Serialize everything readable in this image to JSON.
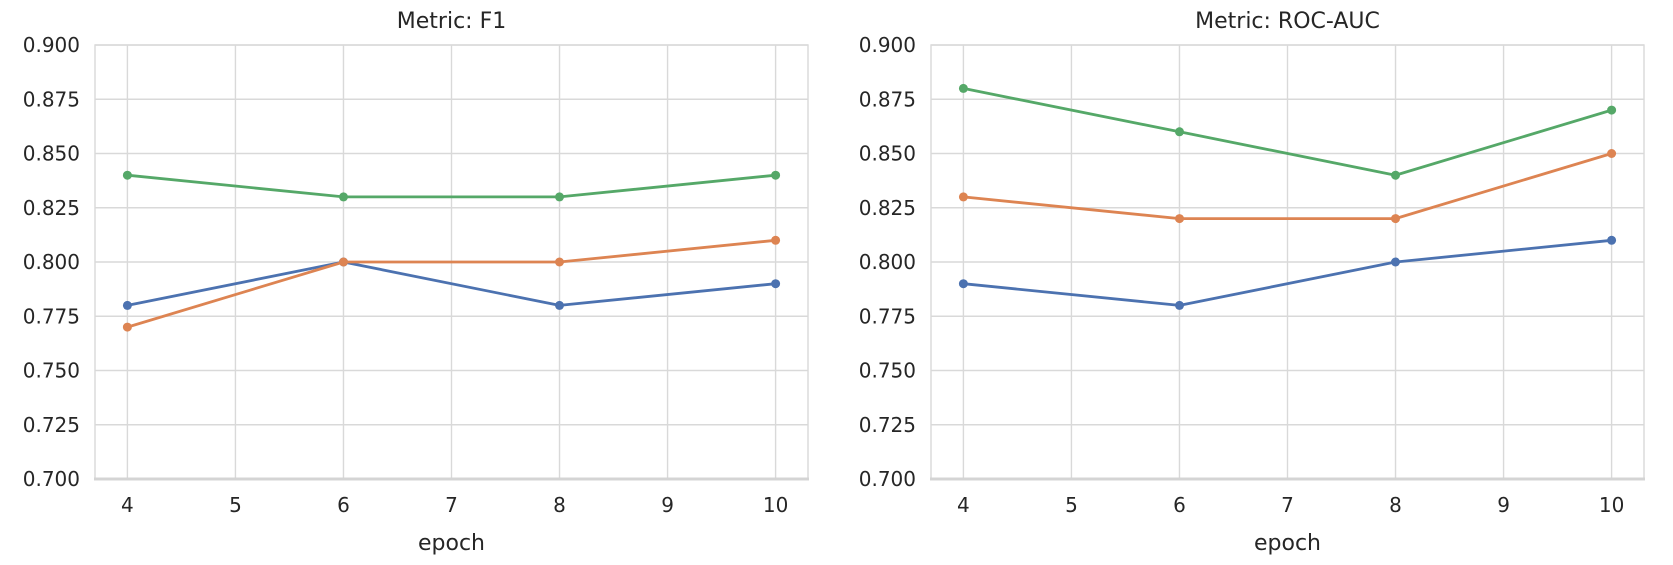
{
  "colors": {
    "background": "#ffffff",
    "grid": "#d9d9d9",
    "axis_spine": "#d4d4d4",
    "text": "#262626",
    "series_blue": "#4C72B0",
    "series_orange": "#DD8452",
    "series_green": "#55A868"
  },
  "chart_data": [
    {
      "type": "line",
      "title": "Metric: F1",
      "xlabel": "epoch",
      "ylabel": "",
      "x": [
        4,
        6,
        8,
        10
      ],
      "xticks": [
        "4",
        "5",
        "6",
        "7",
        "8",
        "9",
        "10"
      ],
      "yticks": [
        "0.700",
        "0.725",
        "0.750",
        "0.775",
        "0.800",
        "0.825",
        "0.850",
        "0.875",
        "0.900"
      ],
      "xlim": [
        3.7,
        10.3
      ],
      "ylim": [
        0.7,
        0.9
      ],
      "grid": true,
      "legend": "none",
      "series": [
        {
          "name": "series-blue",
          "color": "#4C72B0",
          "values": [
            0.78,
            0.8,
            0.78,
            0.79
          ]
        },
        {
          "name": "series-orange",
          "color": "#DD8452",
          "values": [
            0.77,
            0.8,
            0.8,
            0.81
          ]
        },
        {
          "name": "series-green",
          "color": "#55A868",
          "values": [
            0.84,
            0.83,
            0.83,
            0.84
          ]
        }
      ]
    },
    {
      "type": "line",
      "title": "Metric: ROC-AUC",
      "xlabel": "epoch",
      "ylabel": "",
      "x": [
        4,
        6,
        8,
        10
      ],
      "xticks": [
        "4",
        "5",
        "6",
        "7",
        "8",
        "9",
        "10"
      ],
      "yticks": [
        "0.700",
        "0.725",
        "0.750",
        "0.775",
        "0.800",
        "0.825",
        "0.850",
        "0.875",
        "0.900"
      ],
      "xlim": [
        3.7,
        10.3
      ],
      "ylim": [
        0.7,
        0.9
      ],
      "grid": true,
      "legend": "none",
      "series": [
        {
          "name": "series-blue",
          "color": "#4C72B0",
          "values": [
            0.79,
            0.78,
            0.8,
            0.81
          ]
        },
        {
          "name": "series-orange",
          "color": "#DD8452",
          "values": [
            0.83,
            0.82,
            0.82,
            0.85
          ]
        },
        {
          "name": "series-green",
          "color": "#55A868",
          "values": [
            0.88,
            0.86,
            0.84,
            0.87
          ]
        }
      ]
    }
  ]
}
